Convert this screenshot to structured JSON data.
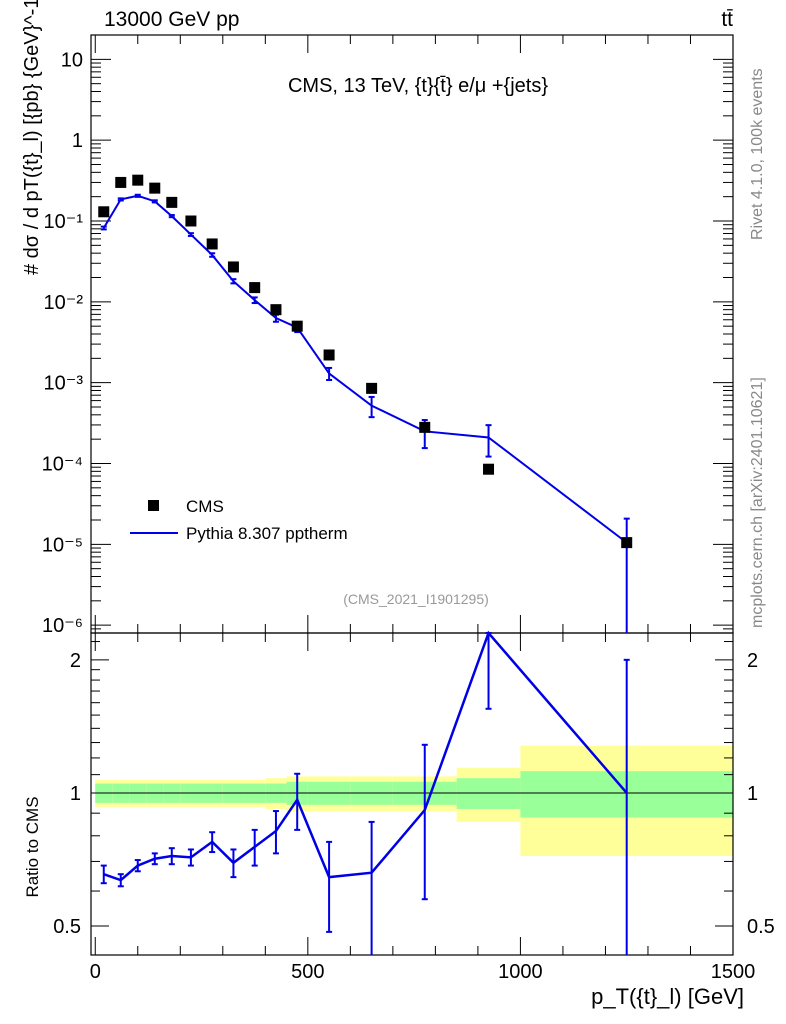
{
  "header": {
    "left": "13000 GeV pp",
    "right": "tt̄"
  },
  "side_texts": {
    "rivet": "Rivet 4.1.0,  100k events",
    "mcplots": "mcplots.cern.ch [arXiv:2401.10621]"
  },
  "annotation": "CMS, 13 TeV, {t}{t̄} e/μ +{jets}",
  "ref_label": "(CMS_2021_I1901295)",
  "legend": {
    "data_label": "CMS",
    "mc_label": "Pythia 8.307 pptherm"
  },
  "colors": {
    "mc": "#0000e6",
    "data": "#000000",
    "band_inner": "#99ff99",
    "band_outer": "#ffff99"
  },
  "chart_data": [
    {
      "type": "scatter",
      "panel": "main",
      "ylabel": "# dσ / d pT({t}_l) [{pb} {GeV}^-1]",
      "yscale": "log",
      "ylim": [
        8e-07,
        20
      ],
      "xlim": [
        -10,
        1500
      ],
      "y_tick_labels": [
        "10⁻⁶",
        "10⁻⁵",
        "10⁻⁴",
        "10⁻³",
        "10⁻²",
        "10⁻¹",
        "1",
        "10"
      ],
      "data_series": {
        "name": "CMS",
        "x": [
          20,
          60,
          100,
          140,
          180,
          225,
          275,
          325,
          375,
          425,
          475,
          550,
          650,
          775,
          925,
          1250
        ],
        "y": [
          0.13,
          0.3,
          0.32,
          0.255,
          0.17,
          0.1,
          0.052,
          0.027,
          0.015,
          0.008,
          0.005,
          0.0022,
          0.00085,
          0.00028,
          8.5e-05,
          1.05e-05
        ]
      },
      "mc_series": {
        "name": "Pythia 8.307 pptherm",
        "x": [
          20,
          60,
          100,
          140,
          180,
          225,
          275,
          325,
          375,
          425,
          475,
          550,
          650,
          775,
          925,
          1250
        ],
        "y": [
          0.082,
          0.185,
          0.205,
          0.175,
          0.115,
          0.068,
          0.038,
          0.018,
          0.0105,
          0.0063,
          0.0048,
          0.0013,
          0.00052,
          0.00025,
          0.00021,
          1.05e-05
        ],
        "err_rel": [
          0.04,
          0.03,
          0.03,
          0.03,
          0.03,
          0.04,
          0.05,
          0.06,
          0.08,
          0.1,
          0.12,
          0.17,
          0.28,
          0.38,
          0.42,
          0.98
        ]
      }
    },
    {
      "type": "line",
      "panel": "ratio",
      "ylabel": "Ratio to CMS",
      "xlabel": "p_T({t}_l) [GeV]",
      "ylim": [
        0.43,
        2.3
      ],
      "xlim": [
        -10,
        1500
      ],
      "x_tick_labels": [
        "0",
        "500",
        "1000",
        "1500"
      ],
      "y_tick_labels": [
        "0.5",
        "1",
        "2"
      ],
      "x": [
        20,
        60,
        100,
        140,
        180,
        225,
        275,
        325,
        375,
        425,
        475,
        550,
        650,
        775,
        925,
        1250
      ],
      "ratio": [
        0.655,
        0.635,
        0.685,
        0.71,
        0.72,
        0.715,
        0.775,
        0.695,
        0.755,
        0.82,
        0.965,
        0.645,
        0.66,
        0.915,
        2.35,
        1.0
      ],
      "ratio_err_low": [
        0.03,
        0.02,
        0.02,
        0.02,
        0.03,
        0.03,
        0.04,
        0.05,
        0.07,
        0.09,
        0.14,
        0.16,
        0.27,
        0.34,
        0.8,
        0.6
      ],
      "ratio_err_high": [
        0.03,
        0.02,
        0.02,
        0.02,
        0.03,
        0.03,
        0.04,
        0.05,
        0.07,
        0.09,
        0.14,
        0.13,
        0.2,
        0.37,
        0.5,
        1.0
      ],
      "bands": {
        "edges": [
          0,
          40,
          80,
          120,
          160,
          200,
          250,
          300,
          350,
          400,
          450,
          500,
          600,
          700,
          850,
          1000,
          1500
        ],
        "inner_half": [
          0.05,
          0.05,
          0.05,
          0.05,
          0.05,
          0.05,
          0.05,
          0.05,
          0.05,
          0.05,
          0.06,
          0.06,
          0.06,
          0.06,
          0.08,
          0.12,
          0.22
        ],
        "outer_half": [
          0.07,
          0.07,
          0.07,
          0.07,
          0.07,
          0.07,
          0.07,
          0.07,
          0.07,
          0.08,
          0.09,
          0.09,
          0.09,
          0.09,
          0.14,
          0.28,
          0.4
        ]
      }
    }
  ]
}
